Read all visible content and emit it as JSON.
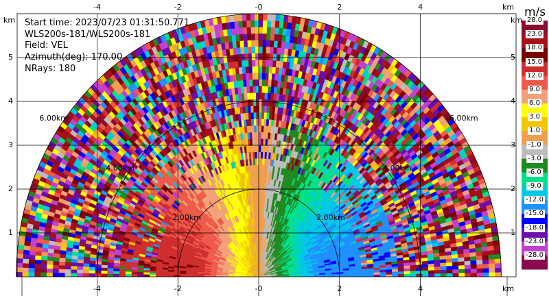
{
  "header": {
    "start_time": "Start time: 2023/07/23 01:31:50.771",
    "instrument": "WLS200s-181/WLS200s-181",
    "field": "Field: VEL",
    "azimuth": "Azimuth(deg): 170.00",
    "nrays": "NRays: 180"
  },
  "colorbar": {
    "unit": "m/s",
    "levels": [
      28.0,
      23.0,
      18.0,
      15.0,
      12.0,
      9.0,
      6.0,
      3.0,
      1.0,
      -1.0,
      -3.0,
      -6.0,
      -9.0,
      -12.0,
      -15.0,
      -18.0,
      -23.0,
      -28.0
    ],
    "labels": [
      "28.0",
      "23.0",
      "18.0",
      "15.0",
      "12.0",
      "9.0",
      "6.0",
      "3.0",
      "1.0",
      "-1.0",
      "-3.0",
      "-6.0",
      "-9.0",
      "-12.0",
      "-15.0",
      "-18.0",
      "-23.0",
      "-28.0"
    ],
    "colors": [
      "#8b0a2e",
      "#a50f15",
      "#7a0000",
      "#cf2d2d",
      "#ee5a4a",
      "#f4a07a",
      "#ffff00",
      "#f2c600",
      "#ef9f4f",
      "#bdbdbd",
      "#1f8a1f",
      "#00e08a",
      "#00c8e8",
      "#1e90ff",
      "#0000ff",
      "#6a0dad",
      "#c040d0",
      "#8b0a4e"
    ]
  },
  "chart_data": {
    "type": "heatmap",
    "title": "",
    "field": "VEL",
    "azimuth_deg": 170.0,
    "nrays": 180,
    "xlabel": "km",
    "ylabel": "km",
    "xlim": [
      -5.9,
      6.0
    ],
    "ylim": [
      0,
      5.9
    ],
    "x_ticks": [
      -4,
      -2,
      0,
      2,
      4
    ],
    "x_tick_labels": [
      "-4",
      "-2",
      "-0",
      "2",
      "4"
    ],
    "y_ticks": [
      1,
      2,
      3,
      4,
      5
    ],
    "y_tick_labels": [
      "1",
      "2",
      "3",
      "4",
      "5"
    ],
    "axis_unit_label": "km",
    "range_rings_km": [
      2,
      4,
      6
    ],
    "range_ring_labels": [
      "2.00km",
      "4.00km",
      "6.00km"
    ],
    "max_range_km": 6.0,
    "grid": true,
    "colorbar_unit": "m/s",
    "colorbar_levels": [
      28.0,
      23.0,
      18.0,
      15.0,
      12.0,
      9.0,
      6.0,
      3.0,
      1.0,
      -1.0,
      -3.0,
      -6.0,
      -9.0,
      -12.0,
      -15.0,
      -18.0,
      -23.0,
      -28.0
    ]
  }
}
